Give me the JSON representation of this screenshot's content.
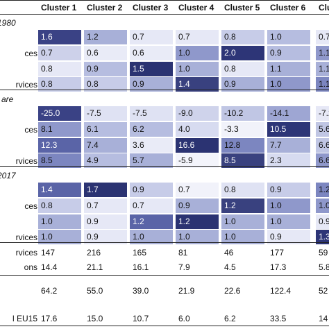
{
  "columns": [
    "Cluster 1",
    "Cluster 2",
    "Cluster 3",
    "Cluster 4",
    "Cluster 5",
    "Cluster 6",
    "Cluster 7"
  ],
  "sections": [
    {
      "title": "1980",
      "row_labels": [
        "",
        "ces",
        "",
        "rvices"
      ],
      "rows": [
        [
          {
            "v": "1.6",
            "c": "#3a4285",
            "w": true
          },
          {
            "v": "1.2",
            "c": "#a8b0d8"
          },
          {
            "v": "0.7",
            "c": "#e6e8f6"
          },
          {
            "v": "0.7",
            "c": "#e6e8f6"
          },
          {
            "v": "0.8",
            "c": "#c7cce8"
          },
          {
            "v": "1.0",
            "c": "#b6bde0"
          },
          {
            "v": "0.7",
            "c": "#e6e8f6"
          }
        ],
        [
          {
            "v": "0.7",
            "c": "#cdd1ea"
          },
          {
            "v": "0.6",
            "c": "#e9ebf7"
          },
          {
            "v": "0.6",
            "c": "#e9ebf7"
          },
          {
            "v": "1.0",
            "c": "#8f98cb"
          },
          {
            "v": "2.0",
            "c": "#2d3577",
            "w": true
          },
          {
            "v": "0.9",
            "c": "#b6bde0"
          },
          {
            "v": "1.1",
            "c": "#8f98cb"
          }
        ],
        [
          {
            "v": "0.8",
            "c": "#e6e8f6"
          },
          {
            "v": "0.9",
            "c": "#b6bde0"
          },
          {
            "v": "1.5",
            "c": "#2b3372",
            "w": true
          },
          {
            "v": "1.0",
            "c": "#a8b0d8"
          },
          {
            "v": "0.8",
            "c": "#e6e8f6"
          },
          {
            "v": "1.1",
            "c": "#a8b0d8"
          },
          {
            "v": "1.1",
            "c": "#a8b0d8"
          }
        ],
        [
          {
            "v": "0.8",
            "c": "#c7cce8"
          },
          {
            "v": "0.8",
            "c": "#c7cce8"
          },
          {
            "v": "0.9",
            "c": "#a8b0d8"
          },
          {
            "v": "1.4",
            "c": "#39417f",
            "w": true
          },
          {
            "v": "0.9",
            "c": "#a8b0d8"
          },
          {
            "v": "1.0",
            "c": "#8f98cb"
          },
          {
            "v": "1.1",
            "c": "#7c86c0"
          }
        ]
      ]
    },
    {
      "title": "are",
      "row_labels": [
        "",
        "ces",
        "",
        "rvices"
      ],
      "rows": [
        [
          {
            "v": "-25.0",
            "c": "#3a4285",
            "w": true
          },
          {
            "v": "-7.5",
            "c": "#dfe2f3"
          },
          {
            "v": "-7.5",
            "c": "#dfe2f3"
          },
          {
            "v": "-9.0",
            "c": "#cfd3eb"
          },
          {
            "v": "-10.2",
            "c": "#c0c6e4"
          },
          {
            "v": "-14.1",
            "c": "#9ea6d3"
          },
          {
            "v": "-7.2",
            "c": "#e6e8f6"
          }
        ],
        [
          {
            "v": "8.1",
            "c": "#8f98cb"
          },
          {
            "v": "6.1",
            "c": "#b6bde0"
          },
          {
            "v": "6.2",
            "c": "#b6bde0"
          },
          {
            "v": "4.0",
            "c": "#d7dbf0"
          },
          {
            "v": "-3.3",
            "c": "#f1f2fa"
          },
          {
            "v": "10.5",
            "c": "#2d3577",
            "w": true
          },
          {
            "v": "5.6",
            "c": "#c0c6e4"
          }
        ],
        [
          {
            "v": "12.3",
            "c": "#5a64a7",
            "w": true
          },
          {
            "v": "7.4",
            "c": "#a8b0d8"
          },
          {
            "v": "3.6",
            "c": "#e9ebf7"
          },
          {
            "v": "16.6",
            "c": "#2b3372",
            "w": true
          },
          {
            "v": "12.8",
            "c": "#7c86c0"
          },
          {
            "v": "7.7",
            "c": "#a8b0d8"
          },
          {
            "v": "6.6",
            "c": "#c0c6e4"
          }
        ],
        [
          {
            "v": "8.5",
            "c": "#7c86c0"
          },
          {
            "v": "4.9",
            "c": "#b6bde0"
          },
          {
            "v": "5.7",
            "c": "#a8b0d8"
          },
          {
            "v": "-5.9",
            "c": "#f3f4fb"
          },
          {
            "v": "8.5",
            "c": "#39417f",
            "w": true
          },
          {
            "v": "2.3",
            "c": "#d7dbf0"
          },
          {
            "v": "6.6",
            "c": "#8f98cb"
          }
        ]
      ]
    },
    {
      "title": "2017",
      "row_labels": [
        "",
        "ces",
        "",
        "rvices"
      ],
      "rows": [
        [
          {
            "v": "1.4",
            "c": "#5a64a7",
            "w": true
          },
          {
            "v": "1.7",
            "c": "#2b3372",
            "w": true
          },
          {
            "v": "0.9",
            "c": "#c7cce8"
          },
          {
            "v": "0.7",
            "c": "#f1f2fa"
          },
          {
            "v": "0.8",
            "c": "#dfe2f3"
          },
          {
            "v": "0.9",
            "c": "#c7cce8"
          },
          {
            "v": "1.2",
            "c": "#7c86c0"
          }
        ],
        [
          {
            "v": "0.8",
            "c": "#c7cce8"
          },
          {
            "v": "0.7",
            "c": "#e6e8f6"
          },
          {
            "v": "0.7",
            "c": "#e6e8f6"
          },
          {
            "v": "0.9",
            "c": "#a8b0d8"
          },
          {
            "v": "1.2",
            "c": "#39417f",
            "w": true
          },
          {
            "v": "1.0",
            "c": "#8f98cb"
          },
          {
            "v": "1.0",
            "c": "#8f98cb"
          }
        ],
        [
          {
            "v": "1.0",
            "c": "#a8b0d8"
          },
          {
            "v": "0.9",
            "c": "#e6e8f6"
          },
          {
            "v": "1.2",
            "c": "#5a64a7",
            "w": true
          },
          {
            "v": "1.2",
            "c": "#2b3372",
            "w": true
          },
          {
            "v": "1.0",
            "c": "#a8b0d8"
          },
          {
            "v": "1.0",
            "c": "#a8b0d8"
          },
          {
            "v": "0.9",
            "c": "#e6e8f6"
          }
        ],
        [
          {
            "v": "1.0",
            "c": "#a8b0d8"
          },
          {
            "v": "0.9",
            "c": "#e6e8f6"
          },
          {
            "v": "1.0",
            "c": "#a8b0d8"
          },
          {
            "v": "1.0",
            "c": "#a8b0d8"
          },
          {
            "v": "1.0",
            "c": "#a8b0d8"
          },
          {
            "v": "0.9",
            "c": "#e6e8f6"
          },
          {
            "v": "1.3",
            "c": "#2d3577",
            "w": true
          }
        ]
      ]
    }
  ],
  "footer_a": {
    "labels": [
      "rvices",
      "ons"
    ],
    "rows": [
      [
        "147",
        "216",
        "165",
        "81",
        "46",
        "177",
        "59"
      ],
      [
        "14.4",
        "21.1",
        "16.1",
        "7.9",
        "4.5",
        "17.3",
        "5.8"
      ]
    ]
  },
  "footer_b": {
    "labels": [
      "",
      "l EU15"
    ],
    "rows": [
      [
        "64.2",
        "55.0",
        "39.0",
        "21.9",
        "22.6",
        "122.4",
        "52"
      ],
      [
        "17.6",
        "15.0",
        "10.7",
        "6.0",
        "6.2",
        "33.5",
        "14"
      ]
    ]
  }
}
